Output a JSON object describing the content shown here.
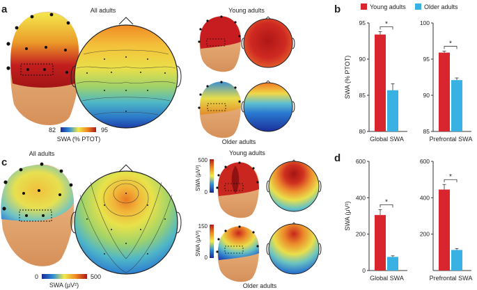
{
  "panels": {
    "a": {
      "letter": "a",
      "all_label": "All adults",
      "young_label": "Young adults",
      "older_label": "Older adults",
      "colorbar": {
        "min": "82",
        "max": "95",
        "label": "SWA (% PTOT)"
      }
    },
    "c": {
      "letter": "c",
      "all_label": "All adults",
      "young_label": "Young adults",
      "older_label": "Older adults",
      "colorbar": {
        "min": "0",
        "max": "500",
        "label": "SWA (μV²)"
      },
      "young_bar": {
        "max": "500",
        "min": "0",
        "label": "SWA (μV²)"
      },
      "older_bar": {
        "max": "150",
        "min": "0",
        "label": "SWA (μV²)"
      }
    },
    "b": {
      "letter": "b"
    },
    "d": {
      "letter": "d"
    }
  },
  "legend": {
    "young": {
      "label": "Young adults",
      "color": "#d9262e"
    },
    "older": {
      "label": "Older adults",
      "color": "#39b1e3"
    }
  },
  "chart_data": [
    {
      "type": "bar",
      "panel": "b",
      "categories": [
        "Global SWA"
      ],
      "series": [
        {
          "name": "Young adults",
          "values": [
            93.4
          ]
        },
        {
          "name": "Older adults",
          "values": [
            85.7
          ]
        }
      ],
      "errors": [
        0.4,
        0.9
      ],
      "ylabel": "SWA (% PTOT)",
      "ylim": [
        80,
        95
      ],
      "yticks": [
        "80",
        "85",
        "90",
        "95"
      ],
      "significance": "*"
    },
    {
      "type": "bar",
      "panel": "b",
      "categories": [
        "Prefrontal SWA"
      ],
      "series": [
        {
          "name": "Young adults",
          "values": [
            95.9
          ]
        },
        {
          "name": "Older adults",
          "values": [
            92.1
          ]
        }
      ],
      "errors": [
        0.2,
        0.3
      ],
      "ylabel": "",
      "ylim": [
        85,
        100
      ],
      "yticks": [
        "85",
        "90",
        "95",
        "100"
      ],
      "significance": "*"
    },
    {
      "type": "bar",
      "panel": "d",
      "categories": [
        "Global SWA"
      ],
      "series": [
        {
          "name": "Young adults",
          "values": [
            305
          ]
        },
        {
          "name": "Older adults",
          "values": [
            75
          ]
        }
      ],
      "errors": [
        30,
        6
      ],
      "ylabel": "SWA (μV²)",
      "ylim": [
        0,
        600
      ],
      "yticks": [
        "0",
        "200",
        "400",
        "600"
      ],
      "significance": "*"
    },
    {
      "type": "bar",
      "panel": "d",
      "categories": [
        "Prefrontal SWA"
      ],
      "series": [
        {
          "name": "Young adults",
          "values": [
            445
          ]
        },
        {
          "name": "Older adults",
          "values": [
            113
          ]
        }
      ],
      "errors": [
        28,
        8
      ],
      "ylabel": "",
      "ylim": [
        0,
        600
      ],
      "yticks": [
        "200",
        "400",
        "600"
      ],
      "significance": "*"
    }
  ]
}
